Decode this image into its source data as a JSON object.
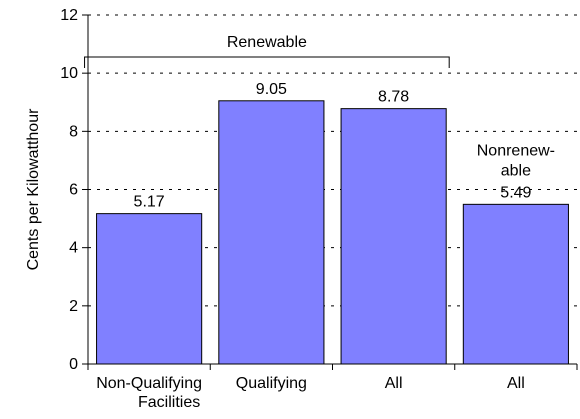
{
  "chart_data": {
    "type": "bar",
    "categories": [
      "Non-Qualifying",
      "Qualifying",
      "All",
      "All"
    ],
    "x_sublabel": "Facilities",
    "values": [
      5.17,
      9.05,
      8.78,
      5.49
    ],
    "value_labels": [
      "5.17",
      "9.05",
      "8.78",
      "5.49"
    ],
    "title": "",
    "xlabel": "",
    "ylabel": "Cents per Kilowatthour",
    "ylim": [
      0,
      12
    ],
    "yticks": [
      0,
      2,
      4,
      6,
      8,
      10,
      12
    ],
    "ytick_labels": [
      "0",
      "2",
      "4",
      "6",
      "8",
      "10",
      "12"
    ],
    "grid": "horizontal dashed",
    "bar_color": "#8080ff",
    "groups": [
      {
        "label": "Renewable",
        "bars": [
          0,
          1,
          2
        ]
      }
    ],
    "annotations": [
      {
        "bar": 3,
        "lines": [
          "Nonrenew-",
          "able"
        ]
      }
    ]
  }
}
